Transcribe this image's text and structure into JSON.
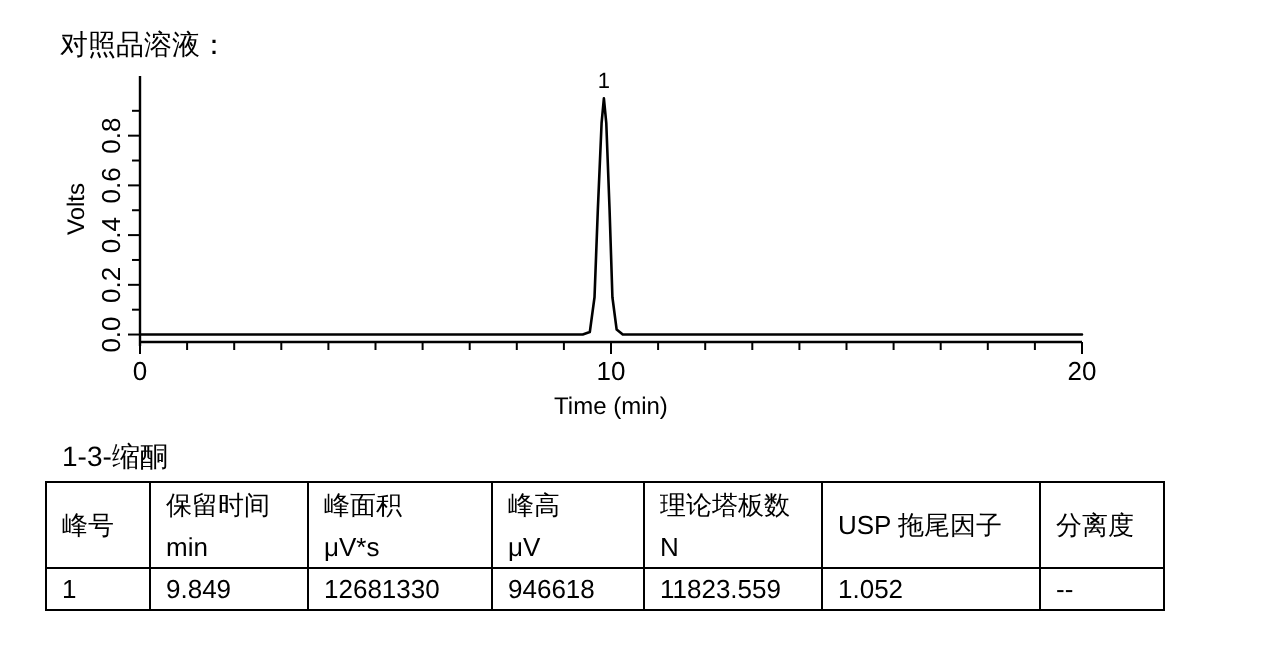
{
  "chart_data": {
    "type": "line",
    "title": "对照品溶液：",
    "xlabel": "Time (min)",
    "ylabel": "Volts",
    "xlim": [
      0,
      20
    ],
    "ylim": [
      -0.03,
      1.04
    ],
    "xticks": [
      0,
      {
        "value": 1,
        "label": null
      },
      {
        "value": 2,
        "label": null
      },
      {
        "value": 3,
        "label": null
      },
      {
        "value": 4,
        "label": null
      },
      {
        "value": 5,
        "label": null
      },
      {
        "value": 6,
        "label": null
      },
      {
        "value": 7,
        "label": null
      },
      {
        "value": 8,
        "label": null
      },
      {
        "value": 9,
        "label": null
      },
      10,
      {
        "value": 11,
        "label": null
      },
      {
        "value": 12,
        "label": null
      },
      {
        "value": 13,
        "label": null
      },
      {
        "value": 14,
        "label": null
      },
      {
        "value": 15,
        "label": null
      },
      {
        "value": 16,
        "label": null
      },
      {
        "value": 17,
        "label": null
      },
      {
        "value": 18,
        "label": null
      },
      {
        "value": 19,
        "label": null
      },
      20
    ],
    "yticks": [
      {
        "value": 0,
        "label": "0.0"
      },
      {
        "value": 0.1,
        "label": null
      },
      {
        "value": 0.2,
        "label": "0.2"
      },
      {
        "value": 0.3,
        "label": null
      },
      {
        "value": 0.4,
        "label": "0.4"
      },
      {
        "value": 0.5,
        "label": null
      },
      {
        "value": 0.6,
        "label": "0.6"
      },
      {
        "value": 0.7,
        "label": null
      },
      {
        "value": 0.8,
        "label": "0.8"
      },
      {
        "value": 0.9,
        "label": null
      }
    ],
    "series": [
      {
        "color": "#000000",
        "x": [
          0,
          9.4,
          9.55,
          9.65,
          9.72,
          9.8,
          9.849,
          9.9,
          9.97,
          10.03,
          10.12,
          10.25,
          20
        ],
        "values": [
          0,
          0,
          0.01,
          0.15,
          0.5,
          0.85,
          0.95,
          0.85,
          0.5,
          0.15,
          0.02,
          0,
          0
        ]
      }
    ],
    "annotations": [
      {
        "text": "1",
        "x": 9.849,
        "y": 0.95
      },
      "1-3-缩酮",
      "峰号",
      "保留时间\nmin",
      "峰面积\nμV*s",
      "峰高\nμV",
      "理论塔板数\nN",
      "USP 拖尾因子",
      "分离度",
      "1",
      "9.849",
      "12681330",
      "946618",
      "11823.559",
      "1.052",
      "--"
    ]
  }
}
